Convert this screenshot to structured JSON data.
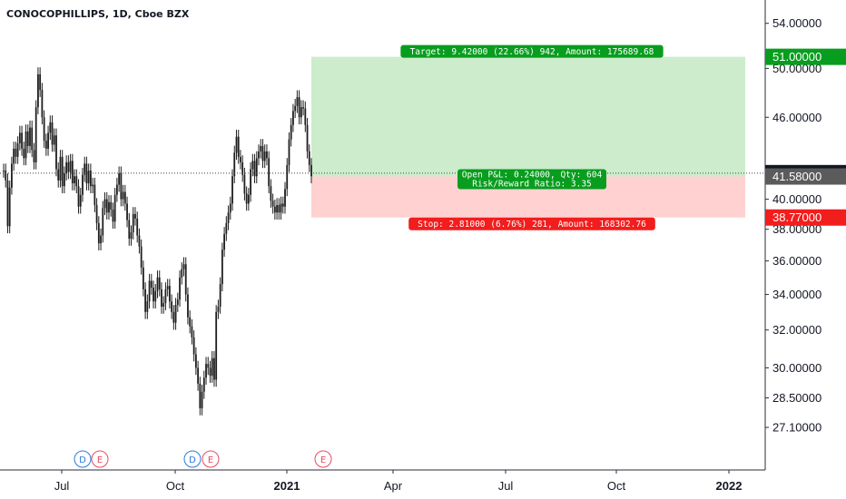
{
  "header": {
    "title": "CONOCOPHILLIPS, 1D, Cboe BZX"
  },
  "colors": {
    "candle": "#1e1e1e",
    "profit_zone": "#cceccc",
    "loss_zone": "#ffd1d1",
    "target_label_bg": "#089d1e",
    "stop_label_bg": "#f21d1d",
    "axis_text": "#131722",
    "current_price_bg": "#131722",
    "last_close_bg": "#5b5b5b",
    "earnings_marker": "#e84a5f",
    "dividend_marker": "#2a7bdc"
  },
  "chart_data": {
    "type": "candlestick",
    "price_axis": {
      "ticks": [
        "54.00000",
        "50.00000",
        "46.00000",
        "42.00000",
        "40.00000",
        "38.00000",
        "36.00000",
        "34.00000",
        "32.00000",
        "30.00000",
        "28.50000",
        "27.10000"
      ],
      "scale": "log",
      "ylim": [
        26.4,
        55.5
      ]
    },
    "time_axis": {
      "labels": [
        "Jul",
        "Oct",
        "2021",
        "Apr",
        "Jul",
        "Oct",
        "2022"
      ]
    },
    "price_tags": [
      {
        "label": "51.00000",
        "value": 51.0,
        "kind": "target"
      },
      {
        "label": "41.82000",
        "value": 41.82,
        "kind": "current"
      },
      {
        "label": "41.58000",
        "value": 41.58,
        "kind": "last"
      },
      {
        "label": "38.77000",
        "value": 38.77,
        "kind": "stop"
      }
    ],
    "position": {
      "entry": 41.58,
      "target": 51.0,
      "stop": 38.77,
      "target_label": "Target: 9.42000 (22.66%) 942, Amount: 175689.68",
      "stop_label": "Stop: 2.81000 (6.76%) 281, Amount: 168302.76",
      "pnl_label": "Open P&L: 0.24000, Qty: 604",
      "rr_label": "Risk/Reward Ratio: 3.35"
    },
    "event_markers": [
      {
        "letter": "D",
        "kind": "dividend",
        "time": "Jul"
      },
      {
        "letter": "E",
        "kind": "earnings",
        "time": "Jul"
      },
      {
        "letter": "D",
        "kind": "dividend",
        "time": "Oct"
      },
      {
        "letter": "E",
        "kind": "earnings",
        "time": "Oct"
      },
      {
        "letter": "E",
        "kind": "earnings",
        "time": "2021"
      }
    ],
    "series": [
      {
        "name": "CONOCOPHILLIPS",
        "closes": [
          42.0,
          41.3,
          38.2,
          40.8,
          42.5,
          43.6,
          43.0,
          44.0,
          44.8,
          43.6,
          42.9,
          44.9,
          43.8,
          45.2,
          43.5,
          42.6,
          46.8,
          49.5,
          48.2,
          46.0,
          44.2,
          43.6,
          44.8,
          45.6,
          43.9,
          44.6,
          42.1,
          41.3,
          43.0,
          40.9,
          41.8,
          42.6,
          41.9,
          42.7,
          41.1,
          41.6,
          40.9,
          39.5,
          40.3,
          41.7,
          42.5,
          41.1,
          42.0,
          40.9,
          41.0,
          39.6,
          38.4,
          37.1,
          37.6,
          39.4,
          40.0,
          39.1,
          39.8,
          39.3,
          38.5,
          40.3,
          41.0,
          41.8,
          40.0,
          40.5,
          39.7,
          38.6,
          37.4,
          37.8,
          39.0,
          38.7,
          37.6,
          36.9,
          35.6,
          34.3,
          33.0,
          33.6,
          34.8,
          34.4,
          33.6,
          34.2,
          35.0,
          34.3,
          33.3,
          33.5,
          34.3,
          34.5,
          33.6,
          33.0,
          32.4,
          33.4,
          33.7,
          35.0,
          35.5,
          35.8,
          34.0,
          32.7,
          32.2,
          31.6,
          30.7,
          30.0,
          29.2,
          28.0,
          28.8,
          29.5,
          30.2,
          30.0,
          29.6,
          30.5,
          29.4,
          33.0,
          33.3,
          34.6,
          36.7,
          37.7,
          38.4,
          39.1,
          39.7,
          41.6,
          43.3,
          44.5,
          43.0,
          42.6,
          41.7,
          40.4,
          39.7,
          40.3,
          42.1,
          42.7,
          41.6,
          42.9,
          43.4,
          43.8,
          42.7,
          43.4,
          42.9,
          40.9,
          39.9,
          39.5,
          39.1,
          39.6,
          39.1,
          39.7,
          39.5,
          40.7,
          42.4,
          44.3,
          45.4,
          46.5,
          46.9,
          47.6,
          46.0,
          46.8,
          46.7,
          45.4,
          43.4,
          42.4,
          41.6
        ]
      }
    ]
  }
}
